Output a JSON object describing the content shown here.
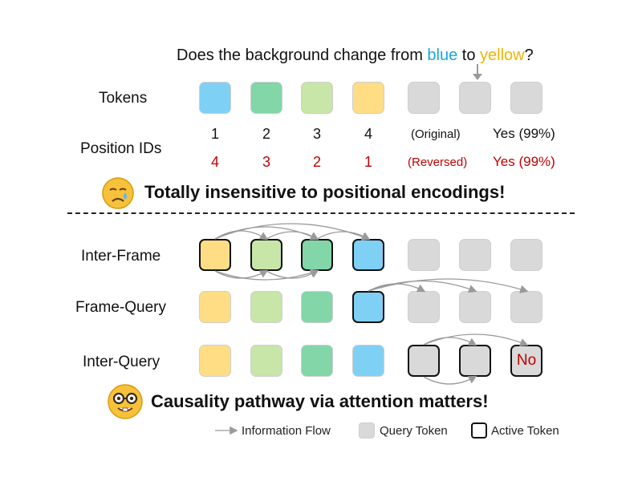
{
  "question": {
    "prefix": "Does the background change from ",
    "word1": "blue",
    "middle": " to ",
    "word2": "yellow",
    "suffix": "?"
  },
  "top": {
    "tokens_label": "Tokens",
    "position_label": "Position IDs",
    "original_ids": [
      "1",
      "2",
      "3",
      "4"
    ],
    "reversed_ids": [
      "4",
      "3",
      "2",
      "1"
    ],
    "original_tag": "(Original)",
    "reversed_tag": "(Reversed)",
    "original_answer": "Yes (99%)",
    "reversed_answer": "Yes (99%)",
    "conclusion": "Totally insensitive to positional encodings!"
  },
  "bottom": {
    "rows": [
      {
        "label": "Inter-Frame"
      },
      {
        "label": "Frame-Query"
      },
      {
        "label": "Inter-Query"
      }
    ],
    "answer": "No",
    "conclusion": "Causality pathway via attention matters!"
  },
  "legend": {
    "flow": "Information Flow",
    "query": "Query Token",
    "active": "Active Token"
  },
  "colors": {
    "blue": "#7fd0f5",
    "green": "#82d6a8",
    "light_green": "#c7e6a8",
    "yellow": "#fedd85",
    "gray": "#d9d9d9",
    "red": "#c00000",
    "question_blue": "#1aa7e0",
    "question_yellow": "#f0b400"
  },
  "icons": [
    "crying-face-icon",
    "nerd-face-icon",
    "arrow-icon"
  ]
}
